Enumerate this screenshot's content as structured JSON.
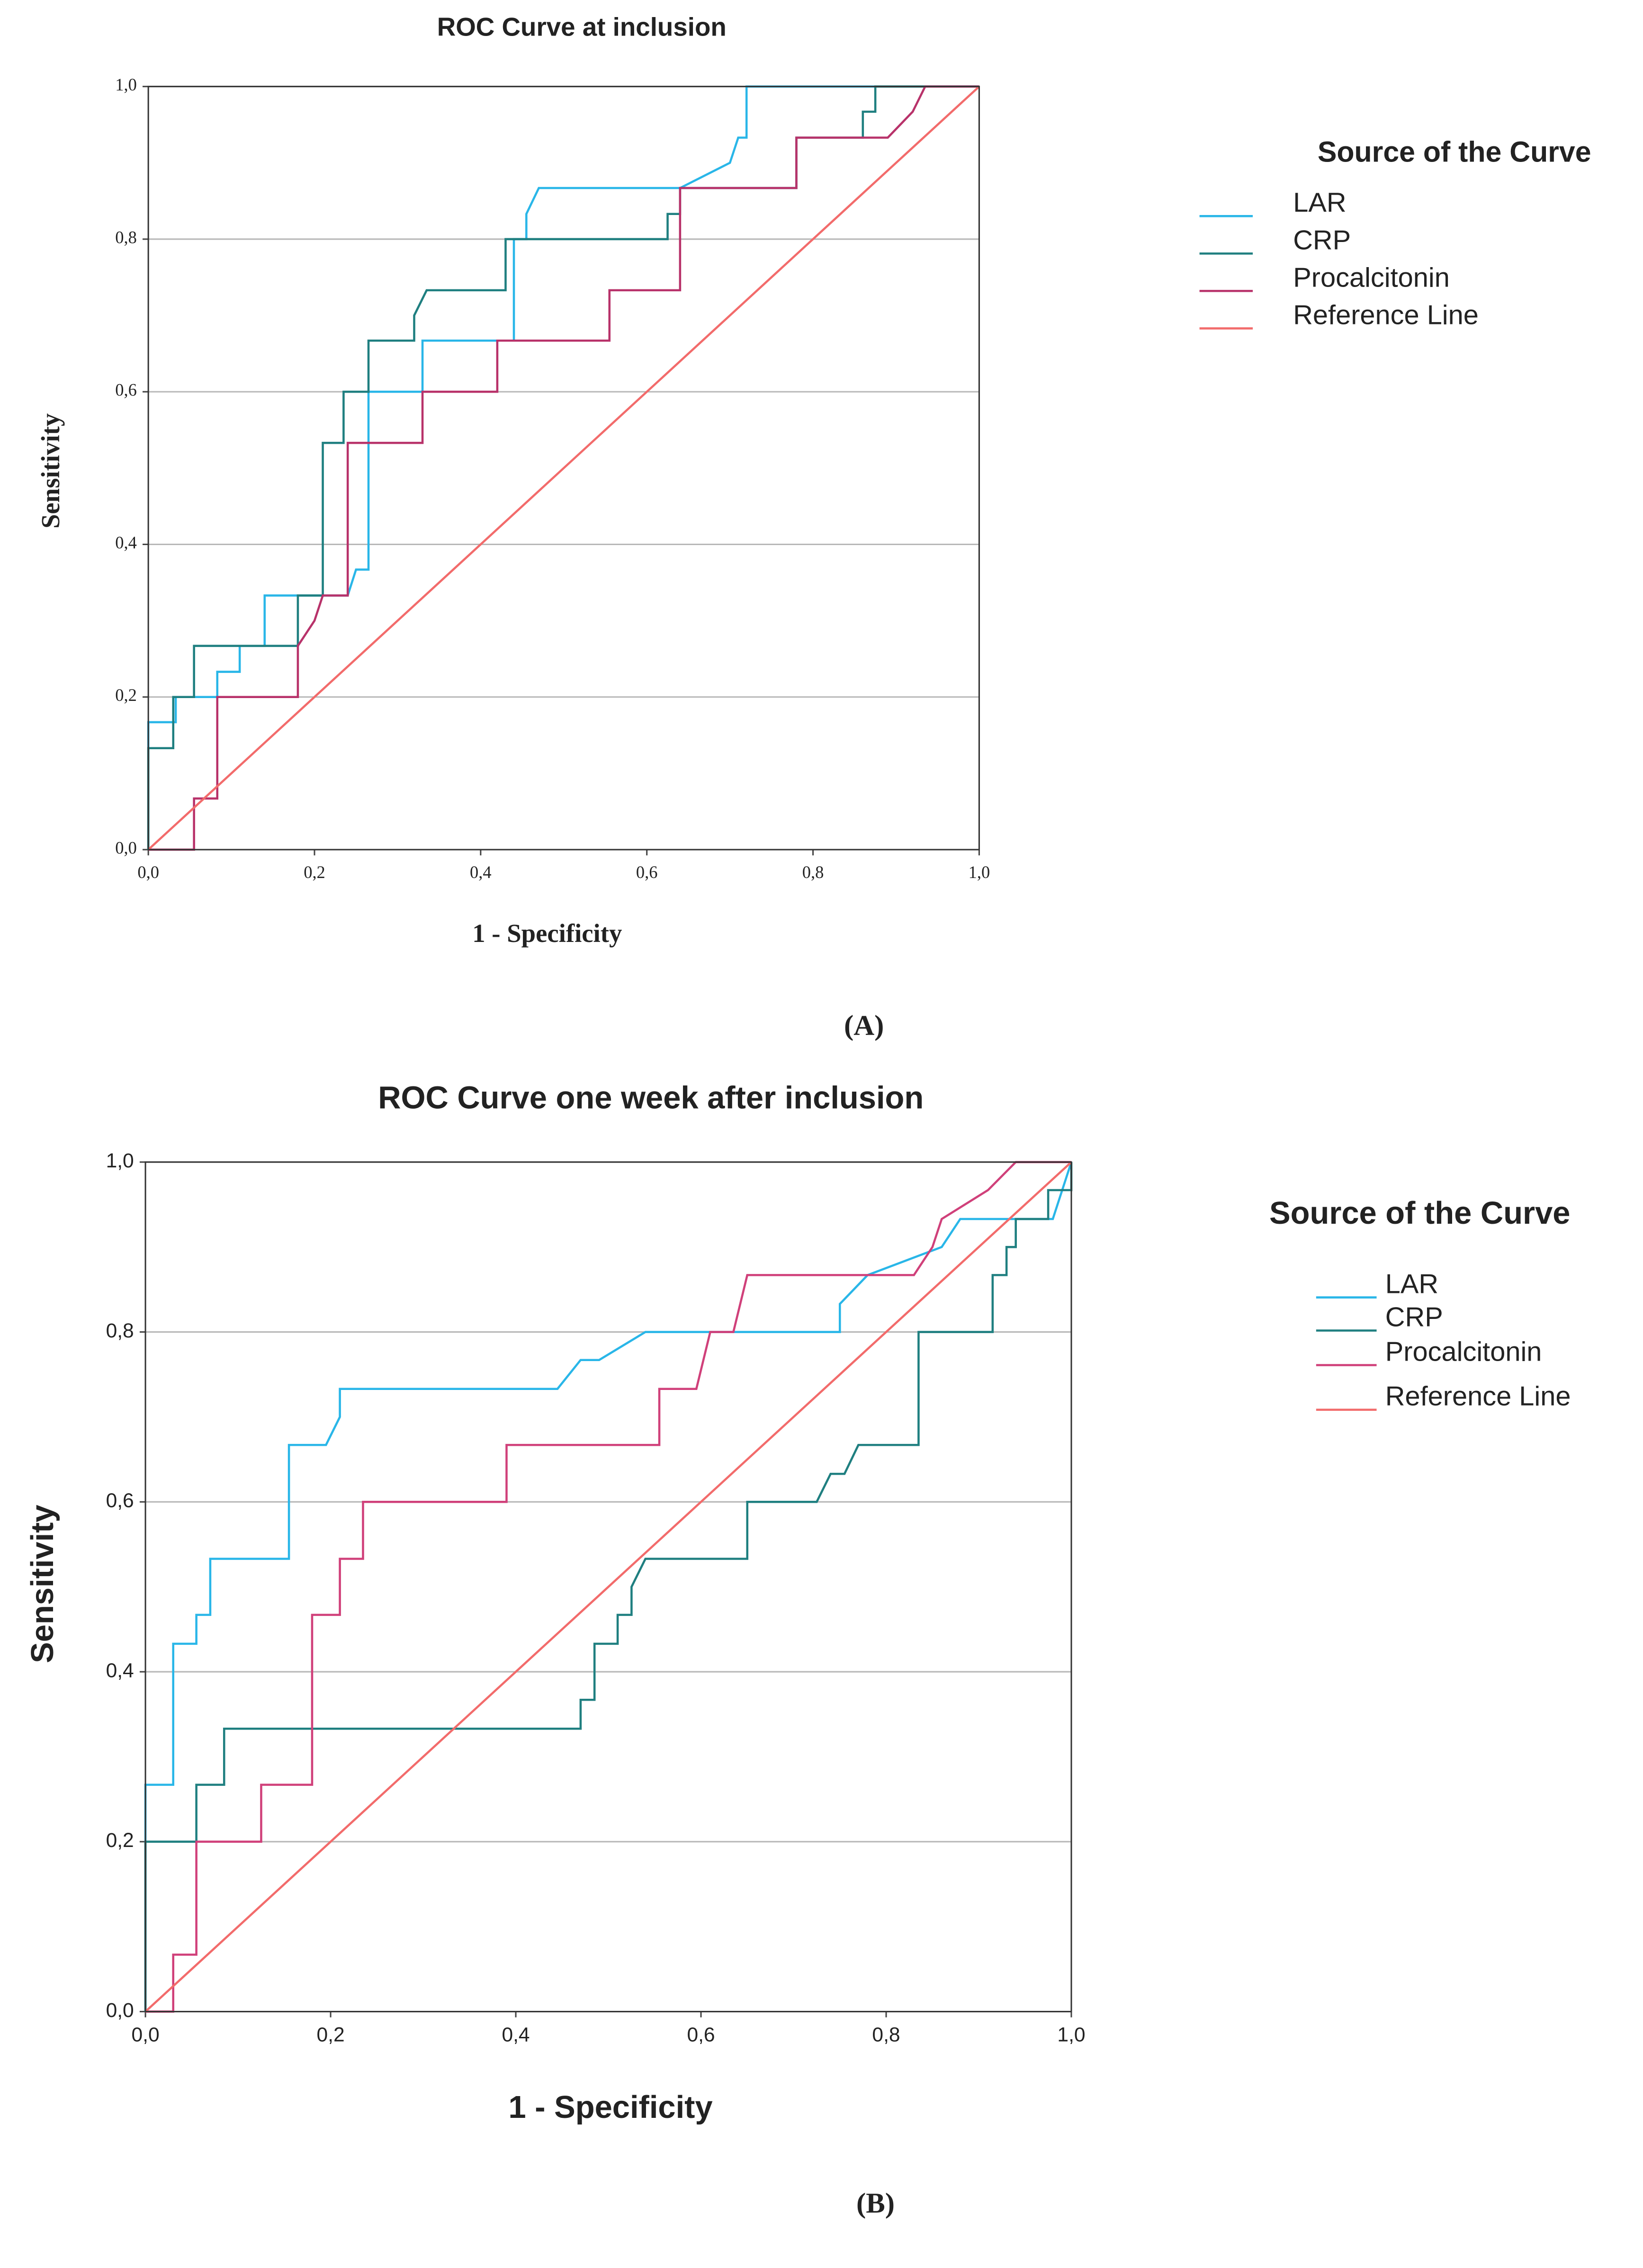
{
  "chart_data": [
    {
      "type": "line",
      "title": "ROC Curve at inclusion",
      "xlabel": "1 - Specificity",
      "ylabel": "Sensitivity",
      "legend_title": "Source of the Curve",
      "legend": "right",
      "grid": true,
      "caption": "(A)",
      "xlim": [
        0,
        1
      ],
      "ylim": [
        0,
        1
      ],
      "xticks": [
        {
          "value": 0,
          "label": "0,0"
        },
        {
          "value": 0.2,
          "label": "0,2"
        },
        {
          "value": 0.4,
          "label": "0,4"
        },
        {
          "value": 0.6,
          "label": "0,6"
        },
        {
          "value": 0.8,
          "label": "0,8"
        },
        {
          "value": 1,
          "label": "1,0"
        }
      ],
      "yticks": [
        {
          "value": 0,
          "label": "0,0"
        },
        {
          "value": 0.2,
          "label": "0,2"
        },
        {
          "value": 0.4,
          "label": "0,4"
        },
        {
          "value": 0.6,
          "label": "0,6"
        },
        {
          "value": 0.8,
          "label": "0,8"
        },
        {
          "value": 1,
          "label": "1,0"
        }
      ],
      "series": [
        {
          "name": "LAR",
          "color": "#29b6e8",
          "x": [
            0,
            0,
            0.033,
            0.033,
            0.083,
            0.083,
            0.11,
            0.11,
            0.14,
            0.14,
            0.24,
            0.25,
            0.265,
            0.265,
            0.33,
            0.33,
            0.44,
            0.44,
            0.455,
            0.455,
            0.47,
            0.64,
            0.7,
            0.71,
            0.72,
            0.72,
            1
          ],
          "values": [
            0,
            0.167,
            0.167,
            0.2,
            0.2,
            0.233,
            0.233,
            0.267,
            0.267,
            0.333,
            0.333,
            0.367,
            0.367,
            0.6,
            0.6,
            0.667,
            0.667,
            0.8,
            0.8,
            0.833,
            0.867,
            0.867,
            0.9,
            0.933,
            0.933,
            1,
            1
          ]
        },
        {
          "name": "CRP",
          "color": "#1f7f80",
          "x": [
            0,
            0,
            0.03,
            0.03,
            0.055,
            0.055,
            0.18,
            0.18,
            0.21,
            0.21,
            0.235,
            0.235,
            0.265,
            0.265,
            0.32,
            0.32,
            0.335,
            0.43,
            0.43,
            0.625,
            0.625,
            0.64,
            0.64,
            0.78,
            0.78,
            0.86,
            0.86,
            0.875,
            0.875,
            1
          ],
          "values": [
            0,
            0.133,
            0.133,
            0.2,
            0.2,
            0.267,
            0.267,
            0.333,
            0.333,
            0.533,
            0.533,
            0.6,
            0.6,
            0.667,
            0.667,
            0.7,
            0.733,
            0.733,
            0.8,
            0.8,
            0.833,
            0.833,
            0.867,
            0.867,
            0.933,
            0.933,
            0.967,
            0.967,
            1,
            1
          ]
        },
        {
          "name": "Procalcitonin",
          "color": "#b8326a",
          "x": [
            0,
            0.055,
            0.055,
            0.083,
            0.083,
            0.18,
            0.18,
            0.2,
            0.21,
            0.24,
            0.24,
            0.33,
            0.33,
            0.42,
            0.42,
            0.555,
            0.555,
            0.64,
            0.64,
            0.78,
            0.78,
            0.89,
            0.92,
            0.935,
            1
          ],
          "values": [
            0,
            0,
            0.067,
            0.067,
            0.2,
            0.2,
            0.267,
            0.3,
            0.333,
            0.333,
            0.533,
            0.533,
            0.6,
            0.6,
            0.667,
            0.667,
            0.733,
            0.733,
            0.867,
            0.867,
            0.933,
            0.933,
            0.967,
            1,
            1
          ]
        },
        {
          "name": "Reference Line",
          "color": "#f26b6b",
          "x": [
            0,
            1
          ],
          "values": [
            0,
            1
          ]
        }
      ]
    },
    {
      "type": "line",
      "title": "ROC Curve one week after inclusion",
      "xlabel": "1 - Specificity",
      "ylabel": "Sensitivity",
      "legend_title": "Source of the  Curve",
      "legend": "right",
      "grid": true,
      "caption": "(B)",
      "xlim": [
        0,
        1
      ],
      "ylim": [
        0,
        1
      ],
      "xticks": [
        {
          "value": 0,
          "label": "0,0"
        },
        {
          "value": 0.2,
          "label": "0,2"
        },
        {
          "value": 0.4,
          "label": "0,4"
        },
        {
          "value": 0.6,
          "label": "0,6"
        },
        {
          "value": 0.8,
          "label": "0,8"
        },
        {
          "value": 1,
          "label": "1,0"
        }
      ],
      "yticks": [
        {
          "value": 0,
          "label": "0,0"
        },
        {
          "value": 0.2,
          "label": "0,2"
        },
        {
          "value": 0.4,
          "label": "0,4"
        },
        {
          "value": 0.6,
          "label": "0,6"
        },
        {
          "value": 0.8,
          "label": "0,8"
        },
        {
          "value": 1,
          "label": "1,0"
        }
      ],
      "series": [
        {
          "name": "LAR",
          "color": "#29b6e8",
          "x": [
            0,
            0,
            0.03,
            0.03,
            0.055,
            0.055,
            0.07,
            0.07,
            0.155,
            0.155,
            0.195,
            0.21,
            0.21,
            0.445,
            0.47,
            0.49,
            0.54,
            0.75,
            0.75,
            0.78,
            0.86,
            0.88,
            0.98,
            1
          ],
          "values": [
            0,
            0.267,
            0.267,
            0.433,
            0.433,
            0.467,
            0.467,
            0.533,
            0.533,
            0.667,
            0.667,
            0.7,
            0.733,
            0.733,
            0.767,
            0.767,
            0.8,
            0.8,
            0.833,
            0.867,
            0.9,
            0.933,
            0.933,
            1
          ]
        },
        {
          "name": "CRP",
          "color": "#1f7f80",
          "x": [
            0,
            0,
            0.055,
            0.055,
            0.085,
            0.085,
            0.47,
            0.47,
            0.485,
            0.485,
            0.51,
            0.51,
            0.525,
            0.525,
            0.54,
            0.65,
            0.65,
            0.725,
            0.74,
            0.755,
            0.77,
            0.835,
            0.835,
            0.915,
            0.915,
            0.93,
            0.93,
            0.94,
            0.94,
            0.975,
            0.975,
            1,
            1
          ],
          "values": [
            0,
            0.2,
            0.2,
            0.267,
            0.267,
            0.333,
            0.333,
            0.367,
            0.367,
            0.433,
            0.433,
            0.467,
            0.467,
            0.5,
            0.533,
            0.533,
            0.6,
            0.6,
            0.633,
            0.633,
            0.667,
            0.667,
            0.8,
            0.8,
            0.867,
            0.867,
            0.9,
            0.9,
            0.933,
            0.933,
            0.967,
            0.967,
            1
          ]
        },
        {
          "name": "Procalcitonin",
          "color": "#d0407a",
          "x": [
            0,
            0.03,
            0.03,
            0.055,
            0.055,
            0.125,
            0.125,
            0.18,
            0.18,
            0.21,
            0.21,
            0.235,
            0.235,
            0.39,
            0.39,
            0.555,
            0.555,
            0.595,
            0.61,
            0.635,
            0.65,
            0.83,
            0.85,
            0.86,
            0.91,
            0.94,
            1
          ],
          "values": [
            0,
            0,
            0.067,
            0.067,
            0.2,
            0.2,
            0.267,
            0.267,
            0.467,
            0.467,
            0.533,
            0.533,
            0.6,
            0.6,
            0.667,
            0.667,
            0.733,
            0.733,
            0.8,
            0.8,
            0.867,
            0.867,
            0.9,
            0.933,
            0.967,
            1,
            1
          ]
        },
        {
          "name": "Reference Line",
          "color": "#f26b6b",
          "x": [
            0,
            1
          ],
          "values": [
            0,
            1
          ]
        }
      ]
    }
  ]
}
